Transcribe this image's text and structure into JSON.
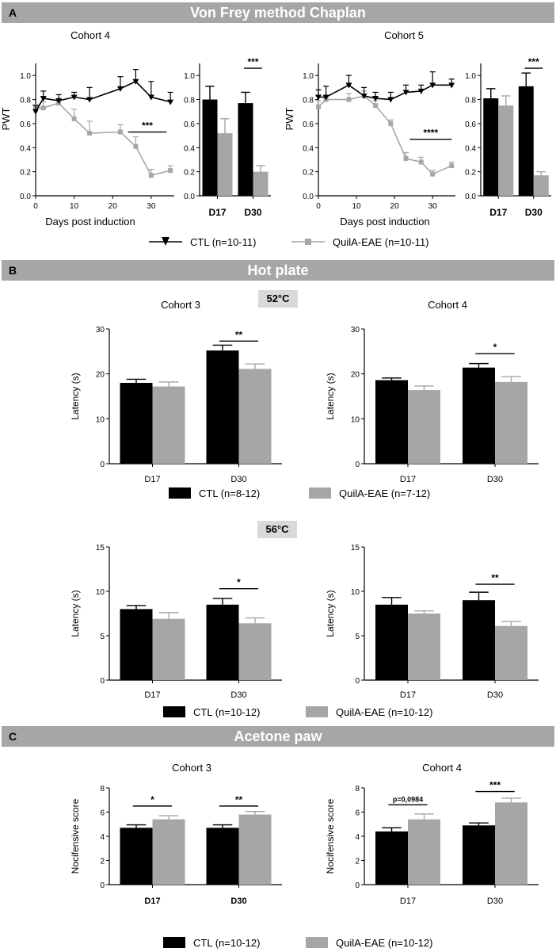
{
  "panels": {
    "a": {
      "letter": "A",
      "title": "Von Frey method Chaplan"
    },
    "b": {
      "letter": "B",
      "title": "Hot plate",
      "temp_52": "52°C",
      "temp_56": "56°C"
    },
    "c": {
      "letter": "C",
      "title": "Acetone paw"
    }
  },
  "colors": {
    "ctl": "#000000",
    "eae": "#a6a6a6",
    "banner": "#a6a6a6"
  },
  "chart_data": [
    {
      "id": "a_line_c4",
      "type": "line",
      "title": "Cohort 4",
      "xlabel": "Days post induction",
      "ylabel": "PWT",
      "xlim": [
        0,
        36
      ],
      "ylim": [
        0,
        1.1
      ],
      "xticks": [
        0,
        10,
        20,
        30
      ],
      "yticks": [
        0,
        0.2,
        0.4,
        0.6,
        0.8,
        1.0
      ],
      "ytick_labels": [
        "0.0",
        "0.2",
        "0.4",
        "0.6",
        "0.8",
        "1.0"
      ],
      "series": [
        {
          "name": "CTL (n=10-11)",
          "x": [
            0,
            2,
            6,
            10,
            14,
            22,
            26,
            30,
            35
          ],
          "y": [
            0.7,
            0.81,
            0.79,
            0.82,
            0.8,
            0.89,
            0.95,
            0.82,
            0.78
          ],
          "err": [
            0.05,
            0.06,
            0.05,
            0.04,
            0.1,
            0.1,
            0.1,
            0.13,
            0.08
          ]
        },
        {
          "name": "QuilA-EAE (n=10-11)",
          "x": [
            0,
            2,
            6,
            10,
            14,
            22,
            26,
            30,
            35
          ],
          "y": [
            0.73,
            0.73,
            0.77,
            0.64,
            0.52,
            0.53,
            0.41,
            0.17,
            0.21
          ],
          "err": [
            0.03,
            0.05,
            0.04,
            0.08,
            0.1,
            0.06,
            0.08,
            0.05,
            0.04
          ]
        }
      ],
      "annotations": [
        {
          "text": "***",
          "x1": 24,
          "x2": 34,
          "y": 0.53
        }
      ]
    },
    {
      "id": "a_bar_c4",
      "type": "bar",
      "categories": [
        "D17",
        "D30"
      ],
      "ylim": [
        0,
        1.1
      ],
      "yticks": [
        0,
        0.2,
        0.4,
        0.6,
        0.8,
        1.0
      ],
      "ytick_labels": [
        "0.0",
        "0.2",
        "0.4",
        "0.6",
        "0.8",
        "1.0"
      ],
      "series": [
        {
          "name": "CTL",
          "values": [
            0.8,
            0.77
          ],
          "err": [
            0.11,
            0.09
          ]
        },
        {
          "name": "QuilA-EAE",
          "values": [
            0.52,
            0.2
          ],
          "err": [
            0.12,
            0.05
          ]
        }
      ],
      "annotations": [
        {
          "text": "***",
          "category": 1,
          "y": 1.06
        }
      ]
    },
    {
      "id": "a_line_c5",
      "type": "line",
      "title": "Cohort 5",
      "xlabel": "Days post induction",
      "ylabel": "PWT",
      "xlim": [
        0,
        36
      ],
      "ylim": [
        0,
        1.1
      ],
      "xticks": [
        0,
        10,
        20,
        30
      ],
      "yticks": [
        0,
        0.2,
        0.4,
        0.6,
        0.8,
        1.0
      ],
      "ytick_labels": [
        "0.0",
        "0.2",
        "0.4",
        "0.6",
        "0.8",
        "1.0"
      ],
      "series": [
        {
          "name": "CTL (n=10-11)",
          "x": [
            0,
            2,
            8,
            12,
            15,
            19,
            23,
            27,
            30,
            35
          ],
          "y": [
            0.82,
            0.82,
            0.92,
            0.83,
            0.81,
            0.8,
            0.86,
            0.87,
            0.92,
            0.92
          ],
          "err": [
            0.06,
            0.09,
            0.08,
            0.07,
            0.05,
            0.06,
            0.06,
            0.05,
            0.11,
            0.05
          ]
        },
        {
          "name": "QuilA-EAE (n=10-11)",
          "x": [
            0,
            2,
            8,
            12,
            15,
            19,
            23,
            27,
            30,
            35
          ],
          "y": [
            0.74,
            0.8,
            0.8,
            0.83,
            0.75,
            0.6,
            0.31,
            0.28,
            0.18,
            0.25
          ],
          "err": [
            0.05,
            0.03,
            0.05,
            0.04,
            0.04,
            0.03,
            0.05,
            0.04,
            0.03,
            0.03
          ]
        }
      ],
      "annotations": [
        {
          "text": "****",
          "x1": 24,
          "x2": 35,
          "y": 0.47
        }
      ]
    },
    {
      "id": "a_bar_c5",
      "type": "bar",
      "categories": [
        "D17",
        "D30"
      ],
      "ylim": [
        0,
        1.1
      ],
      "yticks": [
        0,
        0.2,
        0.4,
        0.6,
        0.8,
        1.0
      ],
      "ytick_labels": [
        "0.0",
        "0.2",
        "0.4",
        "0.6",
        "0.8",
        "1.0"
      ],
      "series": [
        {
          "name": "CTL",
          "values": [
            0.81,
            0.91
          ],
          "err": [
            0.08,
            0.11
          ]
        },
        {
          "name": "QuilA-EAE",
          "values": [
            0.75,
            0.17
          ],
          "err": [
            0.08,
            0.03
          ]
        }
      ],
      "annotations": [
        {
          "text": "***",
          "category": 1,
          "y": 1.06
        }
      ]
    },
    {
      "id": "b52_c3",
      "type": "bar",
      "title": "Cohort 3",
      "ylabel": "Latency (s)",
      "categories": [
        "D17",
        "D30"
      ],
      "ylim": [
        0,
        30
      ],
      "yticks": [
        0,
        10,
        20,
        30
      ],
      "series": [
        {
          "name": "CTL",
          "values": [
            18.0,
            25.2
          ],
          "err": [
            0.8,
            1.2
          ]
        },
        {
          "name": "QuilA-EAE",
          "values": [
            17.2,
            21.1
          ],
          "err": [
            1.0,
            1.1
          ]
        }
      ],
      "annotations": [
        {
          "text": "**",
          "category": 1,
          "y": 27.3
        }
      ]
    },
    {
      "id": "b52_c4",
      "type": "bar",
      "title": "Cohort 4",
      "ylabel": "Latency (s)",
      "categories": [
        "D17",
        "D30"
      ],
      "ylim": [
        0,
        30
      ],
      "yticks": [
        0,
        10,
        20,
        30
      ],
      "series": [
        {
          "name": "CTL",
          "values": [
            18.6,
            21.4
          ],
          "err": [
            0.5,
            0.9
          ]
        },
        {
          "name": "QuilA-EAE",
          "values": [
            16.4,
            18.2
          ],
          "err": [
            0.9,
            1.2
          ]
        }
      ],
      "annotations": [
        {
          "text": "*",
          "category": 1,
          "y": 24.5
        }
      ]
    },
    {
      "id": "b56_c3",
      "type": "bar",
      "ylabel": "Latency (s)",
      "categories": [
        "D17",
        "D30"
      ],
      "ylim": [
        0,
        15
      ],
      "yticks": [
        0,
        5,
        10,
        15
      ],
      "series": [
        {
          "name": "CTL",
          "values": [
            8.0,
            8.5
          ],
          "err": [
            0.4,
            0.7
          ]
        },
        {
          "name": "QuilA-EAE",
          "values": [
            6.9,
            6.4
          ],
          "err": [
            0.7,
            0.6
          ]
        }
      ],
      "annotations": [
        {
          "text": "*",
          "category": 1,
          "y": 10.3
        }
      ]
    },
    {
      "id": "b56_c4",
      "type": "bar",
      "ylabel": "Latency (s)",
      "categories": [
        "D17",
        "D30"
      ],
      "ylim": [
        0,
        15
      ],
      "yticks": [
        0,
        5,
        10,
        15
      ],
      "series": [
        {
          "name": "CTL",
          "values": [
            8.5,
            9.0
          ],
          "err": [
            0.8,
            0.9
          ]
        },
        {
          "name": "QuilA-EAE",
          "values": [
            7.5,
            6.1
          ],
          "err": [
            0.3,
            0.5
          ]
        }
      ],
      "annotations": [
        {
          "text": "**",
          "category": 1,
          "y": 10.8
        }
      ]
    },
    {
      "id": "c_c3",
      "type": "bar",
      "title": "Cohort 3",
      "ylabel": "Nocifensive score",
      "categories": [
        "D17",
        "D30"
      ],
      "ylim": [
        0,
        8
      ],
      "yticks": [
        0,
        2,
        4,
        6,
        8
      ],
      "series": [
        {
          "name": "CTL",
          "values": [
            4.7,
            4.7
          ],
          "err": [
            0.25,
            0.25
          ]
        },
        {
          "name": "QuilA-EAE",
          "values": [
            5.4,
            5.8
          ],
          "err": [
            0.3,
            0.25
          ]
        }
      ],
      "annotations": [
        {
          "text": "*",
          "category": 0,
          "y": 6.5
        },
        {
          "text": "**",
          "category": 1,
          "y": 6.5
        }
      ]
    },
    {
      "id": "c_c4",
      "type": "bar",
      "title": "Cohort 4",
      "ylabel": "Nocifensive score",
      "categories": [
        "D17",
        "D30"
      ],
      "ylim": [
        0,
        8
      ],
      "yticks": [
        0,
        2,
        4,
        6,
        8
      ],
      "series": [
        {
          "name": "CTL",
          "values": [
            4.4,
            4.9
          ],
          "err": [
            0.3,
            0.2
          ]
        },
        {
          "name": "QuilA-EAE",
          "values": [
            5.4,
            6.8
          ],
          "err": [
            0.45,
            0.35
          ]
        }
      ],
      "annotations": [
        {
          "text": "p=0,0984",
          "category": 0,
          "y": 6.6
        },
        {
          "text": "***",
          "category": 1,
          "y": 7.7
        }
      ]
    }
  ],
  "legends": {
    "a": {
      "ctl": "CTL (n=10-11)",
      "eae": "QuilA-EAE (n=10-11)"
    },
    "b52": {
      "ctl": "CTL (n=8-12)",
      "eae": "QuilA-EAE (n=7-12)"
    },
    "b56": {
      "ctl": "CTL (n=10-12)",
      "eae": "QuilA-EAE (n=10-12)"
    },
    "c": {
      "ctl": "CTL (n=10-12)",
      "eae": "QuilA-EAE (n=10-12)"
    }
  }
}
